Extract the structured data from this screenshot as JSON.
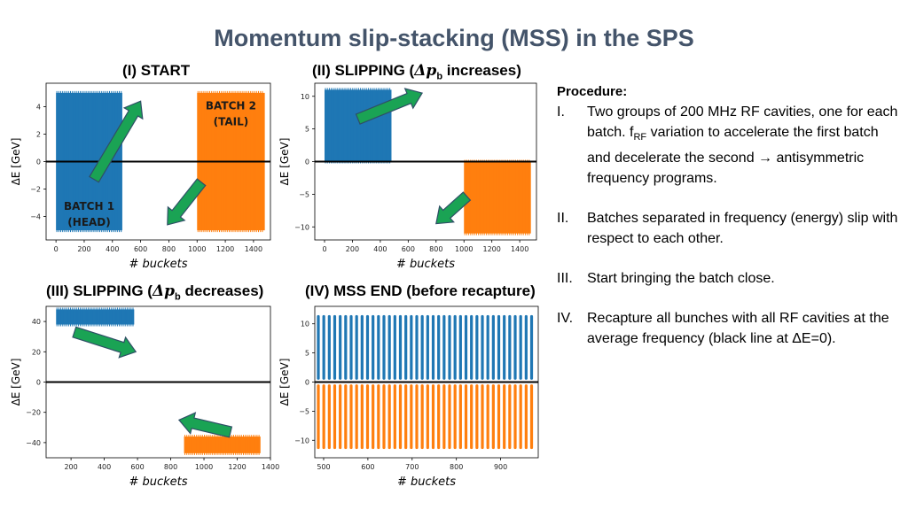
{
  "title": "Momentum slip-stacking (MSS) in the SPS",
  "colors": {
    "blue": "#1f77b4",
    "orange": "#ff7f0e",
    "arrow": "#1aa354",
    "arrow_edge": "#2f4f66"
  },
  "panels": [
    {
      "label": "(I) START"
    },
    {
      "label_pre": "(II) SLIPPING (",
      "label_sym": "Δp",
      "label_sub": "b",
      "label_post": " increases)"
    },
    {
      "label_pre": "(III) SLIPPING (",
      "label_sym": "Δp",
      "label_sub": "b",
      "label_post": " decreases)"
    },
    {
      "label": "(IV) MSS END (before recapture)"
    }
  ],
  "procedure": {
    "heading": "Procedure:",
    "items": [
      {
        "num": "I.",
        "text_a": "Two groups of 200 MHz RF cavities, one for each batch. f",
        "sub": "RF",
        "text_b": " variation to accelerate the first batch and decelerate the second → antisymmetric frequency programs."
      },
      {
        "num": "II.",
        "text": "Batches separated in frequency (energy) slip with respect to each other."
      },
      {
        "num": "III.",
        "text": "Start bringing the batch close."
      },
      {
        "num": "IV.",
        "text": "Recapture all bunches with all RF cavities at the average frequency (black line at ΔE=0)."
      }
    ]
  },
  "chart_data": [
    {
      "type": "area",
      "xlabel": "# buckets",
      "ylabel": "ΔE [GeV]",
      "xlim": [
        -70,
        1520
      ],
      "ylim": [
        -5.7,
        5.7
      ],
      "xticks": [
        0,
        200,
        400,
        600,
        800,
        1000,
        1200,
        1400
      ],
      "yticks": [
        -4,
        -2,
        0,
        2,
        4
      ],
      "zero_line": true,
      "series": [
        {
          "color": "blue",
          "x_range": [
            0,
            470
          ],
          "y_range": [
            -5,
            5
          ]
        },
        {
          "color": "orange",
          "x_range": [
            1000,
            1480
          ],
          "y_range": [
            -5,
            5
          ]
        }
      ],
      "annotations": [
        {
          "text": "BATCH 2",
          "text2": "(TAIL)",
          "x": 1240,
          "y": 3.8
        },
        {
          "text": "BATCH 1",
          "text2": "(HEAD)",
          "x": 235,
          "y": -3.5
        }
      ],
      "arrows": [
        {
          "from": [
            270,
            -1.3
          ],
          "to": [
            600,
            4.4
          ]
        },
        {
          "from": [
            1030,
            -1.5
          ],
          "to": [
            790,
            -4.6
          ]
        }
      ]
    },
    {
      "type": "area",
      "xlabel": "# buckets",
      "ylabel": "ΔE [GeV]",
      "xlim": [
        -70,
        1520
      ],
      "ylim": [
        -12,
        12
      ],
      "xticks": [
        0,
        200,
        400,
        600,
        800,
        1000,
        1200,
        1400
      ],
      "yticks": [
        -10,
        -5,
        0,
        5,
        10
      ],
      "zero_line": true,
      "series": [
        {
          "color": "blue",
          "x_range": [
            0,
            480
          ],
          "y_range": [
            0,
            11
          ]
        },
        {
          "color": "orange",
          "x_range": [
            1000,
            1480
          ],
          "y_range": [
            -11,
            0
          ]
        }
      ],
      "arrows": [
        {
          "from": [
            240,
            6.5
          ],
          "to": [
            700,
            10.5
          ]
        },
        {
          "from": [
            1020,
            -5.3
          ],
          "to": [
            800,
            -9.5
          ]
        }
      ]
    },
    {
      "type": "area",
      "xlabel": "# buckets",
      "ylabel": "ΔE [GeV]",
      "xlim": [
        50,
        1400
      ],
      "ylim": [
        -50,
        50
      ],
      "xticks": [
        200,
        400,
        600,
        800,
        1000,
        1200,
        1400
      ],
      "yticks": [
        -40,
        -20,
        0,
        20,
        40
      ],
      "zero_line": true,
      "series": [
        {
          "color": "blue",
          "x_range": [
            110,
            580
          ],
          "y_range": [
            38,
            48
          ]
        },
        {
          "color": "orange",
          "x_range": [
            880,
            1340
          ],
          "y_range": [
            -47,
            -36
          ]
        }
      ],
      "arrows": [
        {
          "from": [
            220,
            33
          ],
          "to": [
            590,
            20
          ]
        },
        {
          "from": [
            1160,
            -33
          ],
          "to": [
            850,
            -25
          ]
        }
      ]
    },
    {
      "type": "bar",
      "xlabel": "# buckets",
      "ylabel": "ΔE [GeV]",
      "xlim": [
        480,
        985
      ],
      "ylim": [
        -13,
        13
      ],
      "xticks": [
        500,
        600,
        700,
        800,
        900
      ],
      "yticks": [
        -10,
        -5,
        0,
        5,
        10
      ],
      "zero_line": true,
      "series": [
        {
          "color": "blue",
          "bunches": 40,
          "x_start": 488,
          "x_end": 970,
          "y_range": [
            0.4,
            11.5
          ]
        },
        {
          "color": "orange",
          "bunches": 40,
          "x_start": 488,
          "x_end": 970,
          "y_range": [
            -11.5,
            -0.4
          ]
        }
      ]
    }
  ]
}
